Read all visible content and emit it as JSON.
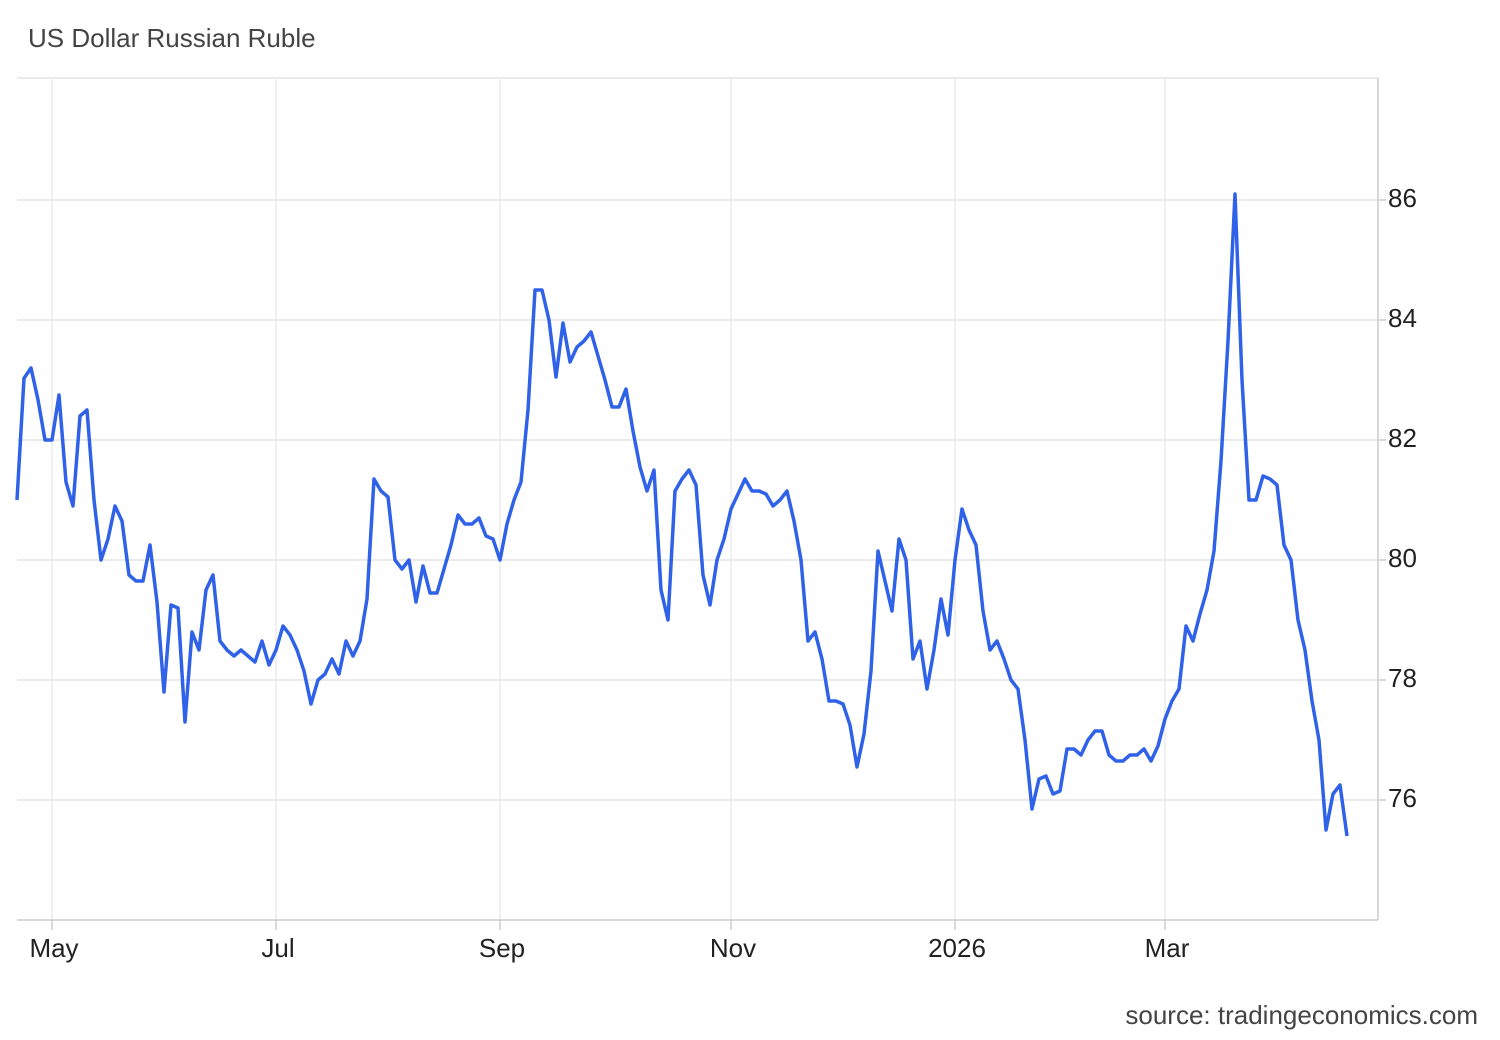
{
  "chart_data": {
    "type": "line",
    "title": "US Dollar Russian Ruble",
    "source": "source: tradingeconomics.com",
    "categories": [
      null,
      null,
      null,
      null,
      null,
      "May",
      null,
      null,
      null,
      null,
      null,
      null,
      null,
      null,
      null,
      null,
      null,
      null,
      null,
      null,
      null,
      null,
      null,
      null,
      null,
      null,
      null,
      null,
      null,
      null,
      null,
      null,
      null,
      null,
      null,
      null,
      null,
      "Jul",
      null,
      null,
      null,
      null,
      null,
      null,
      null,
      null,
      null,
      null,
      null,
      null,
      null,
      null,
      null,
      null,
      null,
      null,
      null,
      null,
      null,
      null,
      null,
      null,
      null,
      null,
      null,
      null,
      null,
      null,
      null,
      "Sep",
      null,
      null,
      null,
      null,
      null,
      null,
      null,
      null,
      null,
      null,
      null,
      null,
      null,
      null,
      null,
      null,
      null,
      null,
      null,
      null,
      null,
      null,
      null,
      null,
      null,
      null,
      null,
      null,
      null,
      null,
      null,
      null,
      "Nov",
      null,
      null,
      null,
      null,
      null,
      null,
      null,
      null,
      null,
      null,
      null,
      null,
      null,
      null,
      null,
      null,
      null,
      null,
      null,
      null,
      null,
      null,
      null,
      null,
      null,
      null,
      null,
      null,
      null,
      null,
      null,
      "2026",
      null,
      null,
      null,
      null,
      null,
      null,
      null,
      null,
      null,
      null,
      null,
      null,
      null,
      null,
      null,
      null,
      null,
      null,
      null,
      null,
      null,
      null,
      null,
      null,
      null,
      null,
      null,
      null,
      null,
      "Mar",
      null,
      null,
      null,
      null,
      null,
      null,
      null,
      null,
      null,
      null,
      null,
      null,
      null,
      null,
      null,
      null,
      null,
      null,
      null,
      null,
      null,
      null,
      null,
      null,
      null,
      null
    ],
    "series": [
      {
        "name": "US Dollar Russian Ruble",
        "color": "#2f62e8",
        "values": [
          81.0,
          83.03,
          83.2,
          82.67,
          82.0,
          82.0,
          82.75,
          81.3,
          80.9,
          82.4,
          82.5,
          81.0,
          80.0,
          80.35,
          80.9,
          80.65,
          79.75,
          79.65,
          79.65,
          80.25,
          79.3,
          77.8,
          79.25,
          79.2,
          77.3,
          78.8,
          78.5,
          79.5,
          79.75,
          78.65,
          78.5,
          78.4,
          78.5,
          78.4,
          78.3,
          78.65,
          78.25,
          78.5,
          78.9,
          78.75,
          78.5,
          78.15,
          77.6,
          78.0,
          78.1,
          78.35,
          78.1,
          78.65,
          78.4,
          78.65,
          79.35,
          81.35,
          81.15,
          81.05,
          80.0,
          79.85,
          80.0,
          79.3,
          79.9,
          79.45,
          79.45,
          79.85,
          80.25,
          80.75,
          80.6,
          80.6,
          80.7,
          80.4,
          80.35,
          80.0,
          80.6,
          81.0,
          81.3,
          82.5,
          84.5,
          84.5,
          84.0,
          83.05,
          83.95,
          83.3,
          83.55,
          83.65,
          83.8,
          83.4,
          83.0,
          82.55,
          82.55,
          82.85,
          82.15,
          81.55,
          81.15,
          81.5,
          79.5,
          79.0,
          81.15,
          81.35,
          81.5,
          81.25,
          79.75,
          79.25,
          80.0,
          80.35,
          80.85,
          81.1,
          81.35,
          81.15,
          81.15,
          81.1,
          80.9,
          81.0,
          81.15,
          80.65,
          80.0,
          78.65,
          78.8,
          78.35,
          77.65,
          77.65,
          77.6,
          77.25,
          76.55,
          77.1,
          78.15,
          80.15,
          79.65,
          79.15,
          80.35,
          80.0,
          78.35,
          78.65,
          77.85,
          78.5,
          79.35,
          78.75,
          80.0,
          80.85,
          80.5,
          80.25,
          79.15,
          78.5,
          78.65,
          78.35,
          78.0,
          77.85,
          77.0,
          75.85,
          76.35,
          76.4,
          76.1,
          76.15,
          76.85,
          76.85,
          76.75,
          77.0,
          77.15,
          77.15,
          76.75,
          76.65,
          76.65,
          76.75,
          76.75,
          76.85,
          76.65,
          76.9,
          77.35,
          77.65,
          77.85,
          78.9,
          78.65,
          79.1,
          79.5,
          80.15,
          81.65,
          83.65,
          86.1,
          83.0,
          81.0,
          81.0,
          81.4,
          81.35,
          81.25,
          80.25,
          80.0,
          79.0,
          78.5,
          77.65,
          77.0,
          75.5,
          76.1,
          76.25,
          75.4
        ]
      }
    ],
    "ylim": [
      74,
      88
    ],
    "yticks": [
      76,
      78,
      80,
      82,
      84,
      86
    ],
    "grid": true
  }
}
